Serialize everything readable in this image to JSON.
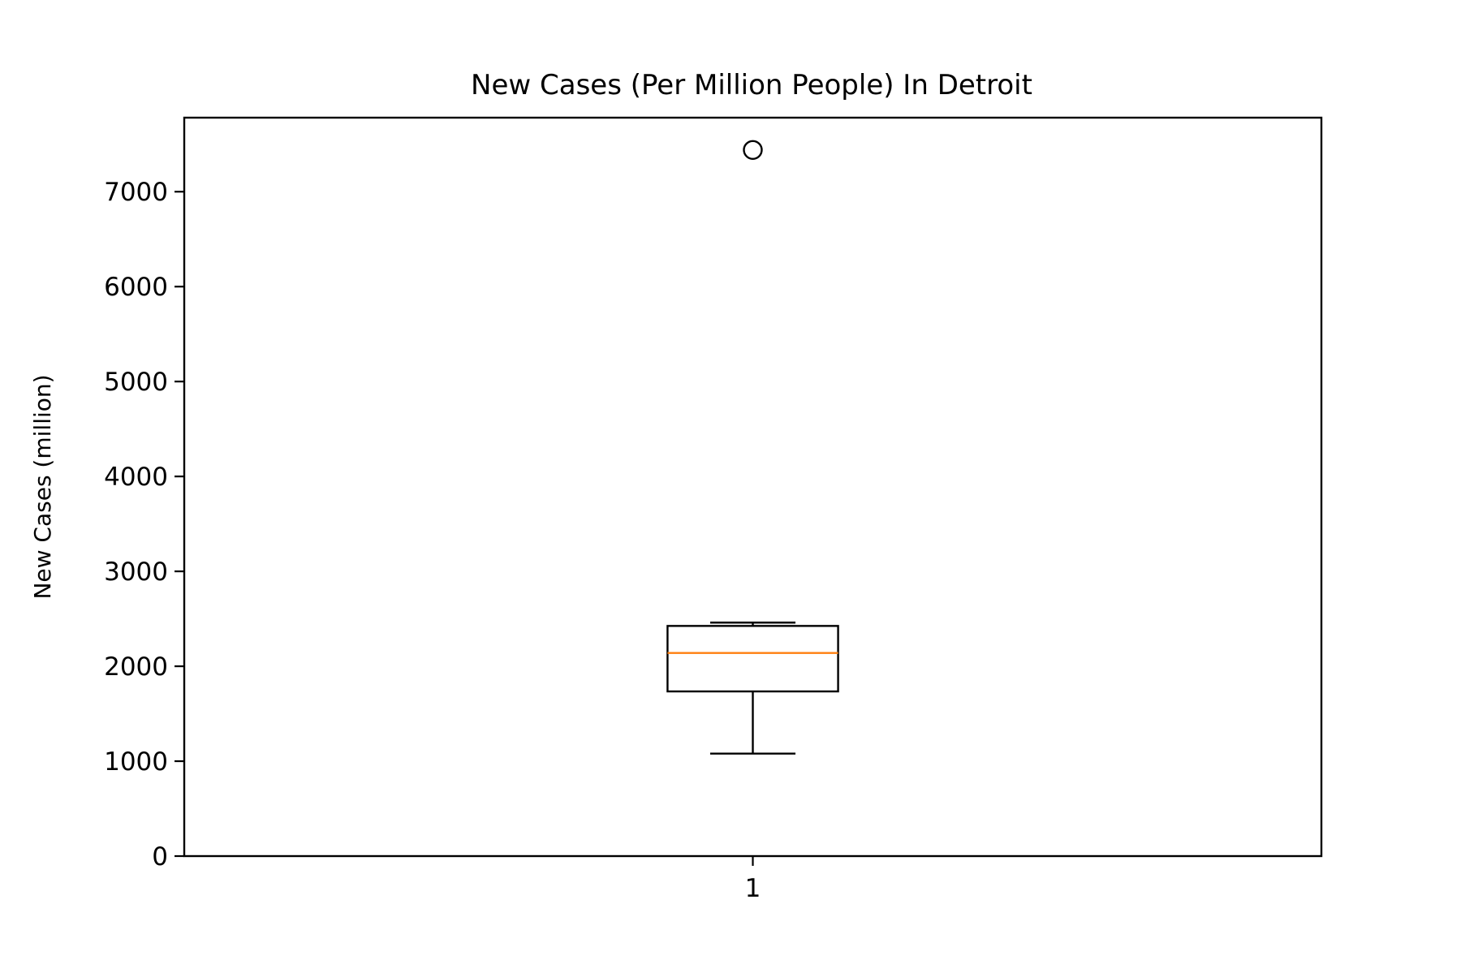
{
  "chart_data": {
    "type": "box",
    "title": "New Cases (Per Million People) In Detroit",
    "xlabel": "",
    "ylabel": "New Cases (million)",
    "categories": [
      "1"
    ],
    "ylim": [
      0,
      7780
    ],
    "xlim": [
      0.5,
      1.5
    ],
    "y_ticks": [
      0,
      1000,
      2000,
      3000,
      4000,
      5000,
      6000,
      7000
    ],
    "grid": false,
    "boxes": [
      {
        "category": "1",
        "position": 1,
        "whisker_low": 1080,
        "q1": 1735,
        "median": 2140,
        "q3": 2425,
        "whisker_high": 2460,
        "outliers": [
          7440
        ]
      }
    ],
    "colors": {
      "box": "#000000",
      "median": "#ff7f0e",
      "axis": "#000000",
      "background": "#ffffff"
    }
  }
}
